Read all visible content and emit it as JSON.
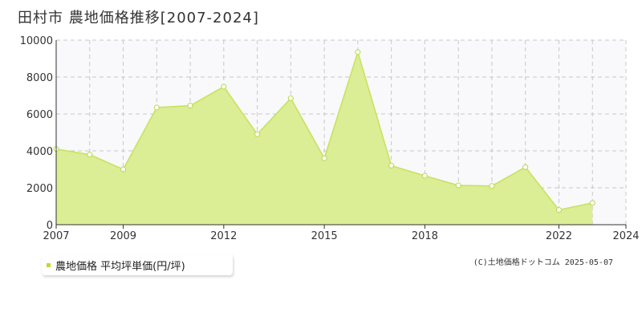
{
  "title": "田村市  農地価格推移[2007-2024]",
  "legend": {
    "label": "農地価格 平均坪単価(円/坪)"
  },
  "credit": "(C)土地価格ドットコム 2025-05-07",
  "colors": {
    "fill": "#dbed95",
    "line": "#c5e35a",
    "marker_stroke": "#b7d94a",
    "marker_fill": "#ffffff",
    "grid": "#c8c8c8",
    "plot_bg": "#f9f8fa",
    "axis": "#333333",
    "legend_swatch": "#b8dc38"
  },
  "chart_data": {
    "type": "area",
    "title": "田村市  農地価格推移[2007-2024]",
    "xlabel": "",
    "ylabel": "",
    "x": [
      2007,
      2008,
      2009,
      2010,
      2011,
      2012,
      2013,
      2014,
      2015,
      2016,
      2017,
      2018,
      2019,
      2020,
      2021,
      2022,
      2023,
      2024
    ],
    "series": [
      {
        "name": "農地価格 平均坪単価(円/坪)",
        "values": [
          4100,
          3800,
          3000,
          6350,
          6450,
          7480,
          4900,
          6850,
          3600,
          9350,
          3200,
          2650,
          2130,
          2100,
          3120,
          800,
          1180,
          null
        ]
      }
    ],
    "xlim": [
      2007,
      2024
    ],
    "ylim": [
      0,
      10000
    ],
    "yticks": [
      0,
      2000,
      4000,
      6000,
      8000,
      10000
    ],
    "xtick_labels": [
      2007,
      2009,
      2012,
      2015,
      2018,
      2022,
      2024
    ],
    "grid": true
  }
}
